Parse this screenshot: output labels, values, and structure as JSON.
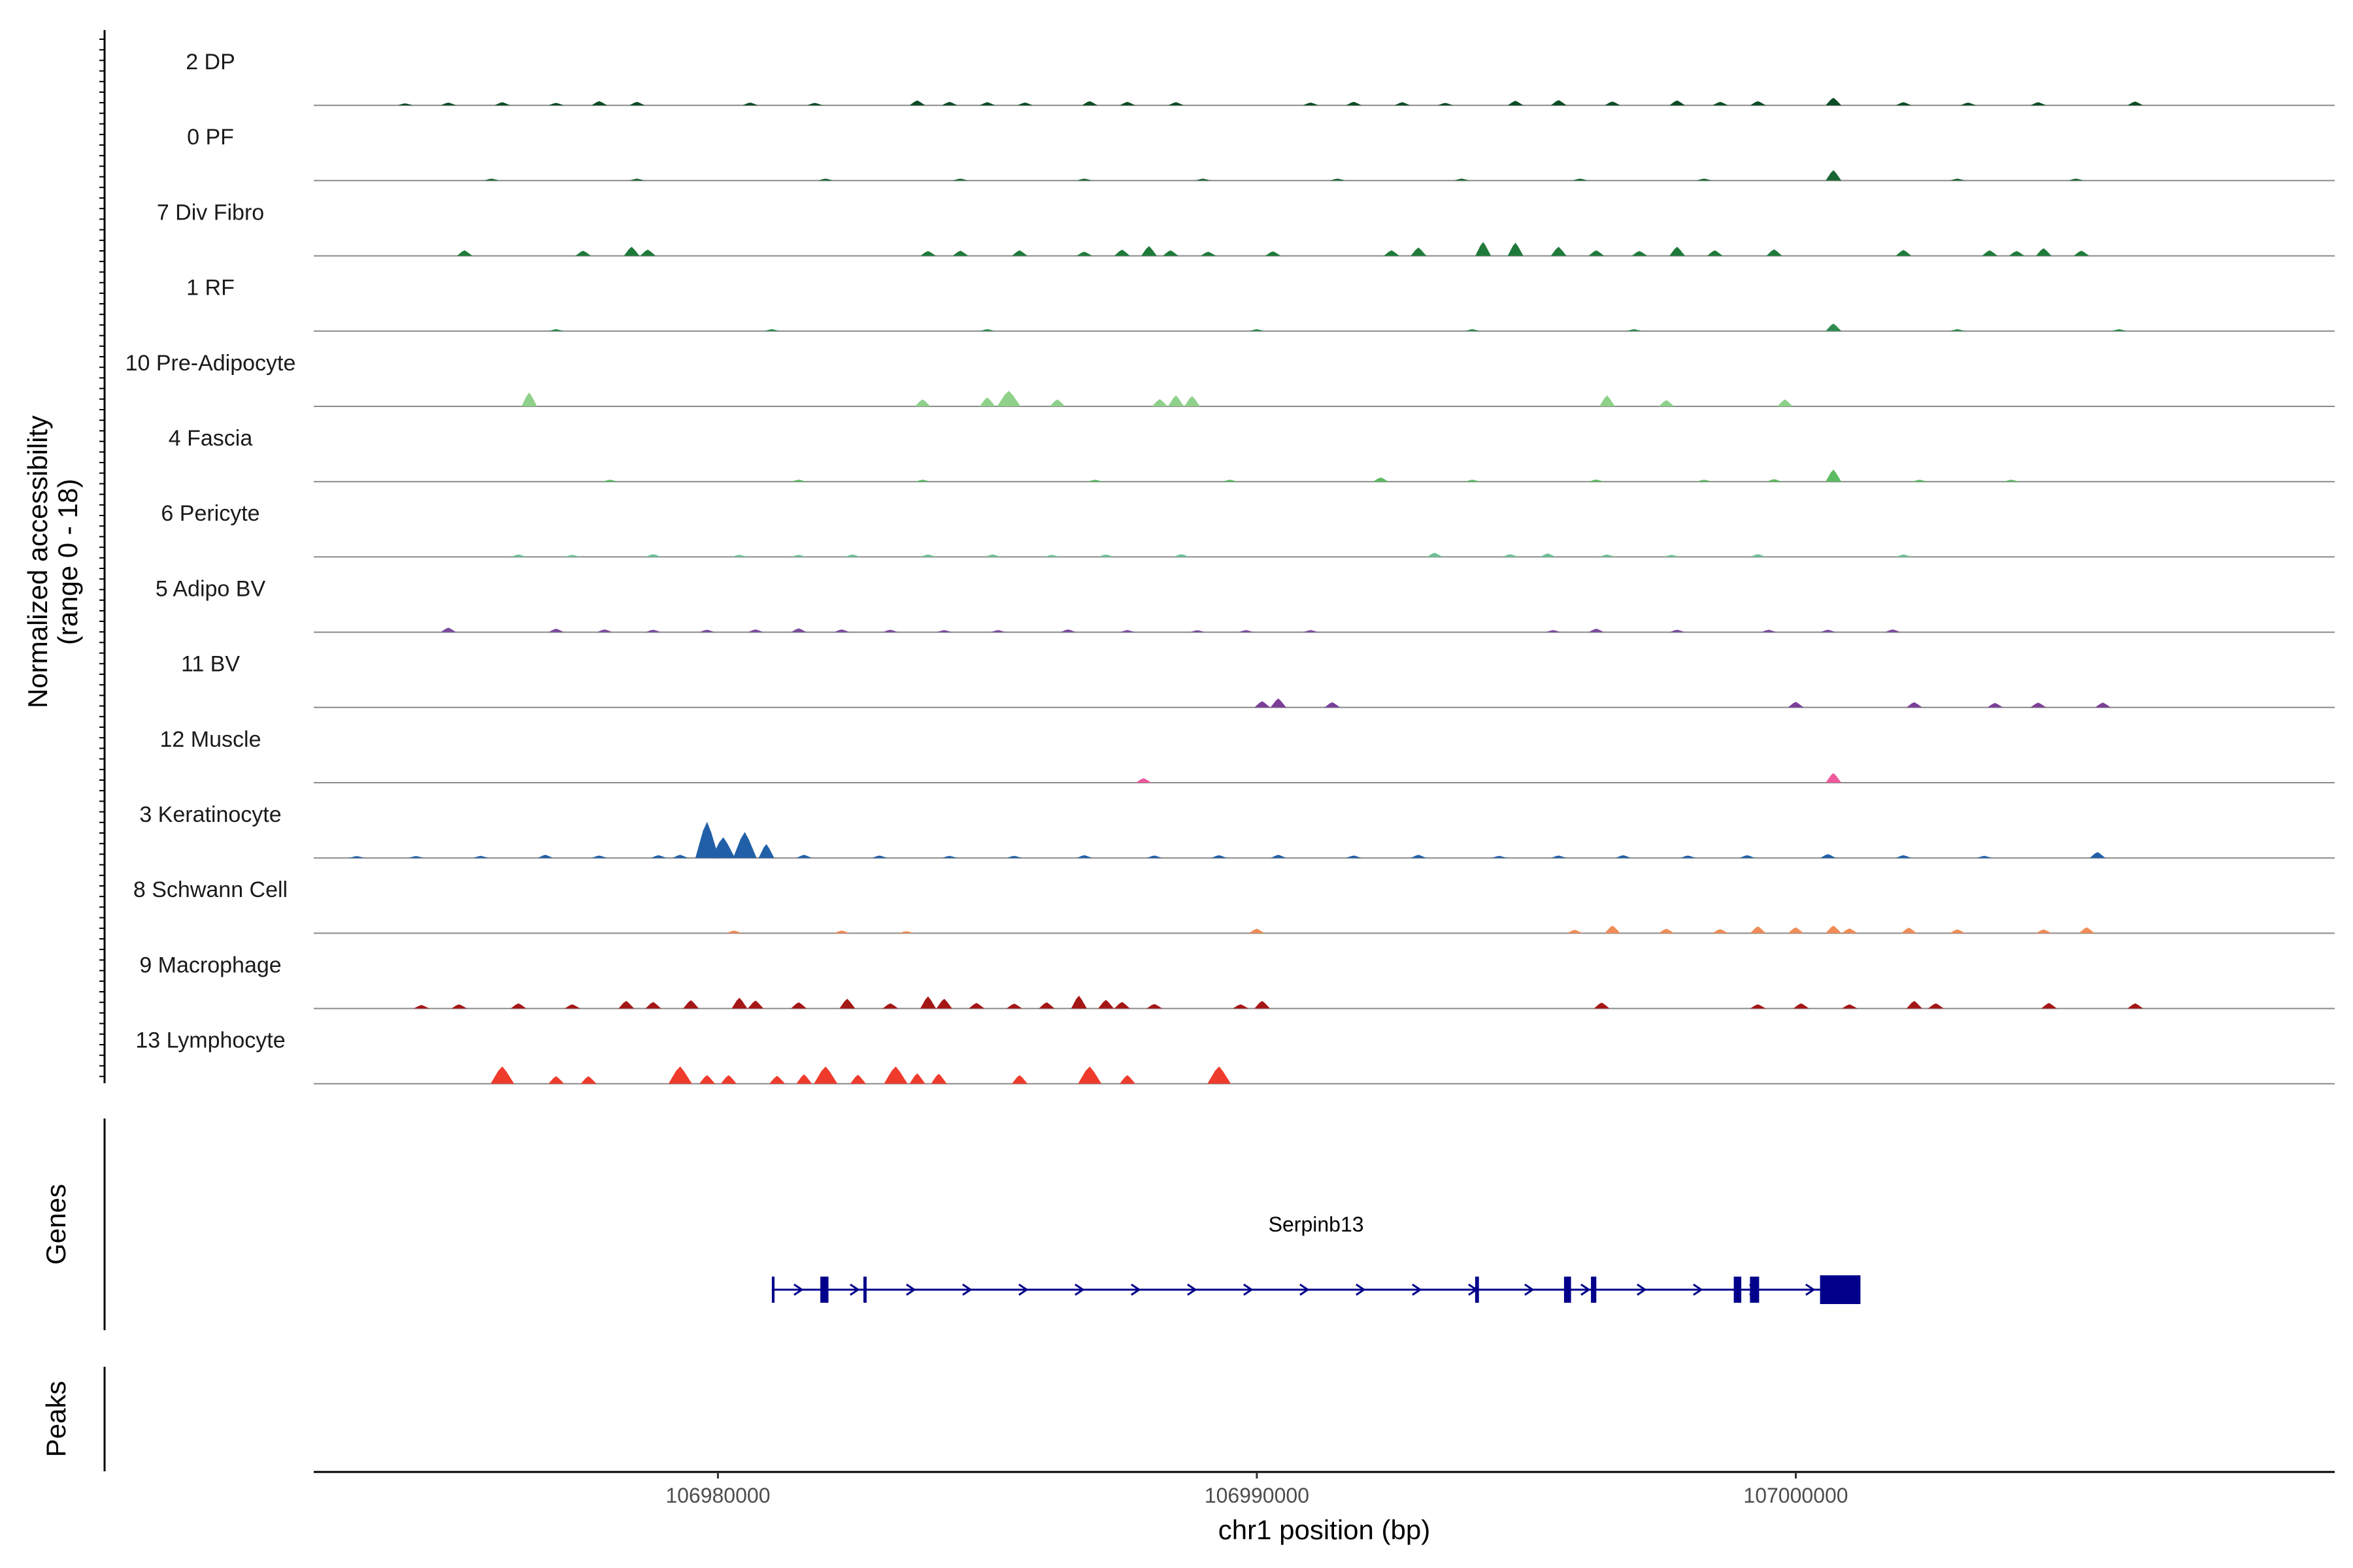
{
  "chart_data": {
    "type": "coverage-track",
    "y_axis_title": "Normalized accessibility",
    "y_axis_range_text": "(range 0 - 18)",
    "ylim": [
      0,
      18
    ],
    "x_axis_title": "chr1 position (bp)",
    "xlim": [
      106972500,
      107010000
    ],
    "x_ticks": [
      106980000,
      106990000,
      107000000
    ],
    "x_tick_labels": [
      "106980000",
      "106990000",
      "107000000"
    ],
    "genes_panel_label": "Genes",
    "peaks_panel_label": "Peaks",
    "tracks": [
      {
        "label": "2 DP",
        "color": "#0b4d24",
        "peaks": [
          [
            106974200,
            0.5
          ],
          [
            106975000,
            0.8
          ],
          [
            106976000,
            0.9
          ],
          [
            106977000,
            0.7
          ],
          [
            106977800,
            1.2
          ],
          [
            106978500,
            1.0
          ],
          [
            106980600,
            0.8
          ],
          [
            106981800,
            0.7
          ],
          [
            106983700,
            1.4
          ],
          [
            106984300,
            1.0
          ],
          [
            106985000,
            0.9
          ],
          [
            106985700,
            0.8
          ],
          [
            106986900,
            1.2
          ],
          [
            106987600,
            1.0
          ],
          [
            106988500,
            0.9
          ],
          [
            106991000,
            0.8
          ],
          [
            106991800,
            1.0
          ],
          [
            106992700,
            0.9
          ],
          [
            106993500,
            0.7
          ],
          [
            106994800,
            1.3
          ],
          [
            106995600,
            1.5
          ],
          [
            106996600,
            1.1
          ],
          [
            106997800,
            1.4
          ],
          [
            106998600,
            1.0
          ],
          [
            106999300,
            1.2
          ],
          [
            107000700,
            2.2
          ],
          [
            107002000,
            0.9
          ],
          [
            107003200,
            0.8
          ],
          [
            107004500,
            0.9
          ],
          [
            107006300,
            1.1
          ]
        ]
      },
      {
        "label": "0 PF",
        "color": "#1a6633",
        "peaks": [
          [
            106975800,
            0.4
          ],
          [
            106978500,
            0.4
          ],
          [
            106982000,
            0.4
          ],
          [
            106984500,
            0.5
          ],
          [
            106986800,
            0.4
          ],
          [
            106989000,
            0.4
          ],
          [
            106991500,
            0.5
          ],
          [
            106993800,
            0.4
          ],
          [
            106996000,
            0.5
          ],
          [
            106998300,
            0.5
          ],
          [
            107000700,
            3.0
          ],
          [
            107003000,
            0.5
          ],
          [
            107005200,
            0.4
          ]
        ]
      },
      {
        "label": "7 Div Fibro",
        "color": "#1f7a3a",
        "peaks": [
          [
            106975300,
            1.6
          ],
          [
            106977500,
            1.5
          ],
          [
            106978400,
            2.6
          ],
          [
            106978700,
            1.8
          ],
          [
            106983900,
            1.4
          ],
          [
            106984500,
            1.5
          ],
          [
            106985600,
            1.6
          ],
          [
            106986800,
            1.2
          ],
          [
            106987500,
            1.8
          ],
          [
            106988000,
            2.8
          ],
          [
            106988400,
            1.6
          ],
          [
            106989100,
            1.2
          ],
          [
            106990300,
            1.3
          ],
          [
            106992500,
            1.6
          ],
          [
            106993000,
            2.4
          ],
          [
            106994200,
            4.0
          ],
          [
            106994800,
            3.8
          ],
          [
            106995600,
            2.6
          ],
          [
            106996300,
            1.6
          ],
          [
            106997100,
            1.4
          ],
          [
            106997800,
            2.6
          ],
          [
            106998500,
            1.6
          ],
          [
            106999600,
            1.9
          ],
          [
            107002000,
            1.7
          ],
          [
            107003600,
            1.6
          ],
          [
            107004100,
            1.4
          ],
          [
            107004600,
            2.2
          ],
          [
            107005300,
            1.5
          ]
        ]
      },
      {
        "label": "1 RF",
        "color": "#2e8b4e",
        "peaks": [
          [
            106977000,
            0.3
          ],
          [
            106981000,
            0.3
          ],
          [
            106985000,
            0.3
          ],
          [
            106990000,
            0.3
          ],
          [
            106994000,
            0.3
          ],
          [
            106997000,
            0.3
          ],
          [
            107000700,
            2.2
          ],
          [
            107003000,
            0.3
          ],
          [
            107006000,
            0.3
          ]
        ]
      },
      {
        "label": "10 Pre-Adipocyte",
        "color": "#8fd18a",
        "peaks": [
          [
            106976500,
            4.0
          ],
          [
            106983800,
            2.0
          ],
          [
            106985000,
            2.6
          ],
          [
            106985400,
            4.5
          ],
          [
            106986300,
            2.0
          ],
          [
            106988200,
            2.1
          ],
          [
            106988500,
            3.2
          ],
          [
            106988800,
            3.0
          ],
          [
            106996500,
            3.2
          ],
          [
            106997600,
            1.8
          ],
          [
            106999800,
            2.0
          ]
        ]
      },
      {
        "label": "4 Fascia",
        "color": "#5dbb63",
        "peaks": [
          [
            106978000,
            0.5
          ],
          [
            106981500,
            0.4
          ],
          [
            106983800,
            0.4
          ],
          [
            106987000,
            0.5
          ],
          [
            106989500,
            0.4
          ],
          [
            106992300,
            1.2
          ],
          [
            106994000,
            0.5
          ],
          [
            106996300,
            0.6
          ],
          [
            106998300,
            0.5
          ],
          [
            106999600,
            0.7
          ],
          [
            107000700,
            3.5
          ],
          [
            107002300,
            0.5
          ],
          [
            107004000,
            0.4
          ]
        ]
      },
      {
        "label": "6 Pericyte",
        "color": "#6ec196",
        "peaks": [
          [
            106976300,
            0.7
          ],
          [
            106977300,
            0.6
          ],
          [
            106978800,
            0.8
          ],
          [
            106980400,
            0.6
          ],
          [
            106981500,
            0.6
          ],
          [
            106982500,
            0.7
          ],
          [
            106983900,
            0.7
          ],
          [
            106985100,
            0.7
          ],
          [
            106986200,
            0.6
          ],
          [
            106987200,
            0.7
          ],
          [
            106988600,
            0.8
          ],
          [
            106993300,
            1.2
          ],
          [
            106994700,
            0.8
          ],
          [
            106995400,
            1.0
          ],
          [
            106996500,
            0.7
          ],
          [
            106997700,
            0.6
          ],
          [
            106999300,
            0.8
          ],
          [
            107002000,
            0.7
          ]
        ]
      },
      {
        "label": "5 Adipo BV",
        "color": "#7a4a9c",
        "peaks": [
          [
            106975000,
            1.3
          ],
          [
            106977000,
            1.0
          ],
          [
            106977900,
            0.8
          ],
          [
            106978800,
            0.7
          ],
          [
            106979800,
            0.7
          ],
          [
            106980700,
            0.8
          ],
          [
            106981500,
            1.1
          ],
          [
            106982300,
            0.8
          ],
          [
            106983200,
            0.7
          ],
          [
            106984200,
            0.6
          ],
          [
            106985200,
            0.6
          ],
          [
            106986500,
            0.8
          ],
          [
            106987600,
            0.6
          ],
          [
            106988900,
            0.5
          ],
          [
            106989800,
            0.6
          ],
          [
            106991000,
            0.6
          ],
          [
            106995500,
            0.6
          ],
          [
            106996300,
            1.0
          ],
          [
            106997800,
            0.7
          ],
          [
            106999500,
            0.7
          ],
          [
            107000600,
            0.7
          ],
          [
            107001800,
            0.8
          ]
        ]
      },
      {
        "label": "11 BV",
        "color": "#7b3f98",
        "peaks": [
          [
            106990100,
            1.8
          ],
          [
            106990400,
            2.6
          ],
          [
            106991400,
            1.5
          ],
          [
            107000000,
            1.6
          ],
          [
            107002200,
            1.5
          ],
          [
            107003700,
            1.3
          ],
          [
            107004500,
            1.4
          ],
          [
            107005700,
            1.4
          ]
        ]
      },
      {
        "label": "12 Muscle",
        "color": "#ee5a9b",
        "peaks": [
          [
            106987900,
            1.3
          ],
          [
            107000700,
            2.8
          ]
        ]
      },
      {
        "label": "3 Keratinocyte",
        "color": "#2160a8",
        "peaks": [
          [
            106973300,
            0.3
          ],
          [
            106974400,
            0.5
          ],
          [
            106975600,
            0.6
          ],
          [
            106976800,
            0.9
          ],
          [
            106977800,
            0.7
          ],
          [
            106978900,
            0.8
          ],
          [
            106979300,
            0.9
          ],
          [
            106979800,
            10.5
          ],
          [
            106980100,
            6.0
          ],
          [
            106980500,
            7.5
          ],
          [
            106980900,
            4.0
          ],
          [
            106981600,
            0.9
          ],
          [
            106983000,
            0.7
          ],
          [
            106984300,
            0.6
          ],
          [
            106985500,
            0.6
          ],
          [
            106986800,
            0.8
          ],
          [
            106988100,
            0.7
          ],
          [
            106989300,
            0.8
          ],
          [
            106990400,
            0.9
          ],
          [
            106991800,
            0.7
          ],
          [
            106993000,
            0.9
          ],
          [
            106994500,
            0.6
          ],
          [
            106995600,
            0.7
          ],
          [
            106996800,
            0.8
          ],
          [
            106998000,
            0.7
          ],
          [
            106999100,
            0.8
          ],
          [
            107000600,
            1.1
          ],
          [
            107002000,
            0.8
          ],
          [
            107003500,
            0.6
          ],
          [
            107005600,
            1.7
          ]
        ]
      },
      {
        "label": "8 Schwann Cell",
        "color": "#f08c57",
        "peaks": [
          [
            106980300,
            0.8
          ],
          [
            106982300,
            0.8
          ],
          [
            106983500,
            0.6
          ],
          [
            106990000,
            1.3
          ],
          [
            106995900,
            1.0
          ],
          [
            106996600,
            2.2
          ],
          [
            106997600,
            1.3
          ],
          [
            106998600,
            1.2
          ],
          [
            106999300,
            2.0
          ],
          [
            107000000,
            1.7
          ],
          [
            107000700,
            2.2
          ],
          [
            107001000,
            1.4
          ],
          [
            107002100,
            1.6
          ],
          [
            107003000,
            1.1
          ],
          [
            107004600,
            1.1
          ],
          [
            107005400,
            1.7
          ]
        ]
      },
      {
        "label": "9 Macrophage",
        "color": "#a51616",
        "peaks": [
          [
            106974500,
            1.0
          ],
          [
            106975200,
            1.2
          ],
          [
            106976300,
            1.5
          ],
          [
            106977300,
            1.2
          ],
          [
            106978300,
            2.2
          ],
          [
            106978800,
            1.9
          ],
          [
            106979500,
            2.4
          ],
          [
            106980400,
            3.1
          ],
          [
            106980700,
            2.3
          ],
          [
            106981500,
            1.8
          ],
          [
            106982400,
            2.8
          ],
          [
            106983200,
            1.5
          ],
          [
            106983900,
            3.5
          ],
          [
            106984200,
            2.8
          ],
          [
            106984800,
            1.6
          ],
          [
            106985500,
            1.4
          ],
          [
            106986100,
            1.8
          ],
          [
            106986700,
            3.7
          ],
          [
            106987200,
            2.5
          ],
          [
            106987500,
            1.9
          ],
          [
            106988100,
            1.3
          ],
          [
            106989700,
            1.2
          ],
          [
            106990100,
            2.2
          ],
          [
            106996400,
            1.7
          ],
          [
            106999300,
            1.2
          ],
          [
            107000100,
            1.5
          ],
          [
            107001000,
            1.2
          ],
          [
            107002200,
            2.2
          ],
          [
            107002600,
            1.5
          ],
          [
            107004700,
            1.6
          ],
          [
            107006300,
            1.5
          ]
        ]
      },
      {
        "label": "13 Lymphocyte",
        "color": "#ef3b2c",
        "peaks": [
          [
            106976000,
            5.0
          ],
          [
            106977000,
            2.2
          ],
          [
            106977600,
            2.2
          ],
          [
            106979300,
            5.0
          ],
          [
            106979800,
            2.5
          ],
          [
            106980200,
            2.5
          ],
          [
            106981100,
            2.3
          ],
          [
            106981600,
            2.7
          ],
          [
            106982000,
            5.0
          ],
          [
            106982600,
            2.6
          ],
          [
            106983300,
            5.0
          ],
          [
            106983700,
            3.0
          ],
          [
            106984100,
            2.9
          ],
          [
            106985600,
            2.5
          ],
          [
            106986900,
            5.0
          ],
          [
            106987600,
            2.5
          ],
          [
            106989300,
            5.0
          ]
        ]
      }
    ],
    "gene": {
      "name": "Serpinb13",
      "color": "#00008b",
      "strand": "+",
      "start": 106981000,
      "end": 107001200,
      "exons": [
        [
          106981000,
          106981050
        ],
        [
          106981900,
          106982050
        ],
        [
          106982700,
          106982760
        ],
        [
          106994050,
          106994120
        ],
        [
          106995700,
          106995830
        ],
        [
          106996200,
          106996300
        ],
        [
          106998850,
          106998990
        ],
        [
          106999150,
          106999320
        ],
        [
          107000450,
          107001200
        ]
      ]
    }
  }
}
